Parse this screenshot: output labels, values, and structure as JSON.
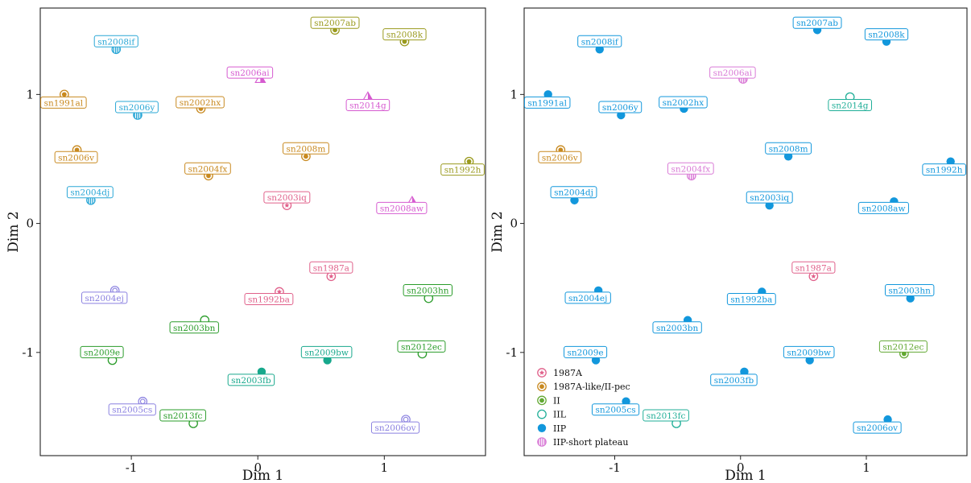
{
  "chart_data": [
    {
      "type": "scatter",
      "xlabel": "Dim 1",
      "ylabel": "Dim 2",
      "xlim": [
        -1.72,
        1.8
      ],
      "ylim": [
        -1.8,
        1.67
      ],
      "x_ticks": [
        -1,
        0,
        1
      ],
      "y_ticks": [
        -1,
        0,
        1
      ],
      "x_tick_labels": [
        "-1",
        "0",
        "1"
      ],
      "y_tick_labels": [
        "-1",
        "0",
        "1"
      ],
      "grid": false,
      "color_key": "class",
      "points": [
        {
          "label": "sn2008if",
          "x": -1.12,
          "y": 1.35,
          "class": "blue"
        },
        {
          "label": "sn2007ab",
          "x": 0.61,
          "y": 1.5,
          "class": "olive"
        },
        {
          "label": "sn2008k",
          "x": 1.16,
          "y": 1.41,
          "class": "olive"
        },
        {
          "label": "sn2006ai",
          "x": 0.02,
          "y": 1.12,
          "class": "magenta"
        },
        {
          "label": "sn1991al",
          "x": -1.53,
          "y": 1.0,
          "class": "orange"
        },
        {
          "label": "sn2002hx",
          "x": -0.45,
          "y": 0.89,
          "class": "orange"
        },
        {
          "label": "sn2014g",
          "x": 0.87,
          "y": 0.98,
          "class": "magenta"
        },
        {
          "label": "sn2006y",
          "x": -0.95,
          "y": 0.84,
          "class": "blue"
        },
        {
          "label": "sn2006v",
          "x": -1.43,
          "y": 0.57,
          "class": "orange"
        },
        {
          "label": "sn2008m",
          "x": 0.38,
          "y": 0.52,
          "class": "orange"
        },
        {
          "label": "sn1992h",
          "x": 1.67,
          "y": 0.48,
          "class": "olive"
        },
        {
          "label": "sn2004fx",
          "x": -0.39,
          "y": 0.37,
          "class": "orange"
        },
        {
          "label": "sn2004dj",
          "x": -1.32,
          "y": 0.18,
          "class": "blue"
        },
        {
          "label": "sn2003iq",
          "x": 0.23,
          "y": 0.14,
          "class": "pink"
        },
        {
          "label": "sn2008aw",
          "x": 1.22,
          "y": 0.17,
          "class": "magenta"
        },
        {
          "label": "sn1987a",
          "x": 0.58,
          "y": -0.41,
          "class": "pink"
        },
        {
          "label": "sn1992ba",
          "x": 0.17,
          "y": -0.53,
          "class": "pink"
        },
        {
          "label": "sn2004ej",
          "x": -1.13,
          "y": -0.52,
          "class": "purple"
        },
        {
          "label": "sn2003hn",
          "x": 1.35,
          "y": -0.58,
          "class": "green"
        },
        {
          "label": "sn2003bn",
          "x": -0.42,
          "y": -0.75,
          "class": "green"
        },
        {
          "label": "sn2009e",
          "x": -1.15,
          "y": -1.06,
          "class": "green"
        },
        {
          "label": "sn2009bw",
          "x": 0.55,
          "y": -1.06,
          "class": "teal"
        },
        {
          "label": "sn2012ec",
          "x": 1.3,
          "y": -1.01,
          "class": "green"
        },
        {
          "label": "sn2003fb",
          "x": 0.03,
          "y": -1.15,
          "class": "teal"
        },
        {
          "label": "sn2005cs",
          "x": -0.91,
          "y": -1.38,
          "class": "purple"
        },
        {
          "label": "sn2013fc",
          "x": -0.51,
          "y": -1.55,
          "class": "green"
        },
        {
          "label": "sn2006ov",
          "x": 1.17,
          "y": -1.52,
          "class": "purple"
        }
      ]
    },
    {
      "type": "scatter",
      "xlabel": "Dim 1",
      "ylabel": "Dim 2",
      "xlim": [
        -1.72,
        1.8
      ],
      "ylim": [
        -1.8,
        1.67
      ],
      "x_ticks": [
        -1,
        0,
        1
      ],
      "y_ticks": [
        -1,
        0,
        1
      ],
      "x_tick_labels": [
        "-1",
        "0",
        "1"
      ],
      "y_tick_labels": [
        "-1",
        "0",
        "1"
      ],
      "grid": false,
      "color_key": "type",
      "legend_position": "bottom-left",
      "legend": [
        {
          "type": "1987A",
          "label": "1987A"
        },
        {
          "type": "1987A-like/II-pec",
          "label": "1987A-like/II-pec"
        },
        {
          "type": "II",
          "label": "II"
        },
        {
          "type": "IIL",
          "label": "IIL"
        },
        {
          "type": "IIP",
          "label": "IIP"
        },
        {
          "type": "IIP-short plateau",
          "label": "IIP-short plateau"
        }
      ],
      "points": [
        {
          "label": "sn2008if",
          "x": -1.12,
          "y": 1.35,
          "type": "IIP"
        },
        {
          "label": "sn2007ab",
          "x": 0.61,
          "y": 1.5,
          "type": "IIP"
        },
        {
          "label": "sn2008k",
          "x": 1.16,
          "y": 1.41,
          "type": "IIP"
        },
        {
          "label": "sn2006ai",
          "x": 0.02,
          "y": 1.12,
          "type": "IIP-short plateau"
        },
        {
          "label": "sn1991al",
          "x": -1.53,
          "y": 1.0,
          "type": "IIP"
        },
        {
          "label": "sn2002hx",
          "x": -0.45,
          "y": 0.89,
          "type": "IIP"
        },
        {
          "label": "sn2014g",
          "x": 0.87,
          "y": 0.98,
          "type": "IIL"
        },
        {
          "label": "sn2006y",
          "x": -0.95,
          "y": 0.84,
          "type": "IIP"
        },
        {
          "label": "sn2006v",
          "x": -1.43,
          "y": 0.57,
          "type": "1987A-like/II-pec"
        },
        {
          "label": "sn2008m",
          "x": 0.38,
          "y": 0.52,
          "type": "IIP"
        },
        {
          "label": "sn1992h",
          "x": 1.67,
          "y": 0.48,
          "type": "IIP"
        },
        {
          "label": "sn2004fx",
          "x": -0.39,
          "y": 0.37,
          "type": "IIP-short plateau"
        },
        {
          "label": "sn2004dj",
          "x": -1.32,
          "y": 0.18,
          "type": "IIP"
        },
        {
          "label": "sn2003iq",
          "x": 0.23,
          "y": 0.14,
          "type": "IIP"
        },
        {
          "label": "sn2008aw",
          "x": 1.22,
          "y": 0.17,
          "type": "IIP"
        },
        {
          "label": "sn1987a",
          "x": 0.58,
          "y": -0.41,
          "type": "1987A"
        },
        {
          "label": "sn1992ba",
          "x": 0.17,
          "y": -0.53,
          "type": "IIP"
        },
        {
          "label": "sn2004ej",
          "x": -1.13,
          "y": -0.52,
          "type": "IIP"
        },
        {
          "label": "sn2003hn",
          "x": 1.35,
          "y": -0.58,
          "type": "IIP"
        },
        {
          "label": "sn2003bn",
          "x": -0.42,
          "y": -0.75,
          "type": "IIP"
        },
        {
          "label": "sn2009e",
          "x": -1.15,
          "y": -1.06,
          "type": "IIP"
        },
        {
          "label": "sn2009bw",
          "x": 0.55,
          "y": -1.06,
          "type": "IIP"
        },
        {
          "label": "sn2012ec",
          "x": 1.3,
          "y": -1.01,
          "type": "II"
        },
        {
          "label": "sn2003fb",
          "x": 0.03,
          "y": -1.15,
          "type": "IIP"
        },
        {
          "label": "sn2005cs",
          "x": -0.91,
          "y": -1.38,
          "type": "IIP"
        },
        {
          "label": "sn2013fc",
          "x": -0.51,
          "y": -1.55,
          "type": "IIL"
        },
        {
          "label": "sn2006ov",
          "x": 1.17,
          "y": -1.52,
          "type": "IIP"
        }
      ]
    }
  ],
  "class_styles": {
    "blue": {
      "color": "#2aa7d6",
      "marker": "circle-hatched"
    },
    "olive": {
      "color": "#9a9a1e",
      "marker": "circle-dot"
    },
    "magenta": {
      "color": "#d65bd0",
      "marker": "triangle-half"
    },
    "orange": {
      "color": "#c8891f",
      "marker": "circle-dot"
    },
    "pink": {
      "color": "#e0608a",
      "marker": "star-circle"
    },
    "purple": {
      "color": "#8a80e0",
      "marker": "circle-double"
    },
    "green": {
      "color": "#2a9c2a",
      "marker": "circle-open"
    },
    "teal": {
      "color": "#17a88c",
      "marker": "circle-filled"
    }
  },
  "type_styles": {
    "1987A": {
      "color": "#e0608a",
      "marker": "star-circle"
    },
    "1987A-like/II-pec": {
      "color": "#c8891f",
      "marker": "circle-dot"
    },
    "II": {
      "color": "#62a832",
      "marker": "circle-dot"
    },
    "IIL": {
      "color": "#1fae97",
      "marker": "circle-open"
    },
    "IIP": {
      "color": "#1297dc",
      "marker": "circle-filled"
    },
    "IIP-short plateau": {
      "color": "#d97ad6",
      "marker": "circle-hatched"
    }
  }
}
